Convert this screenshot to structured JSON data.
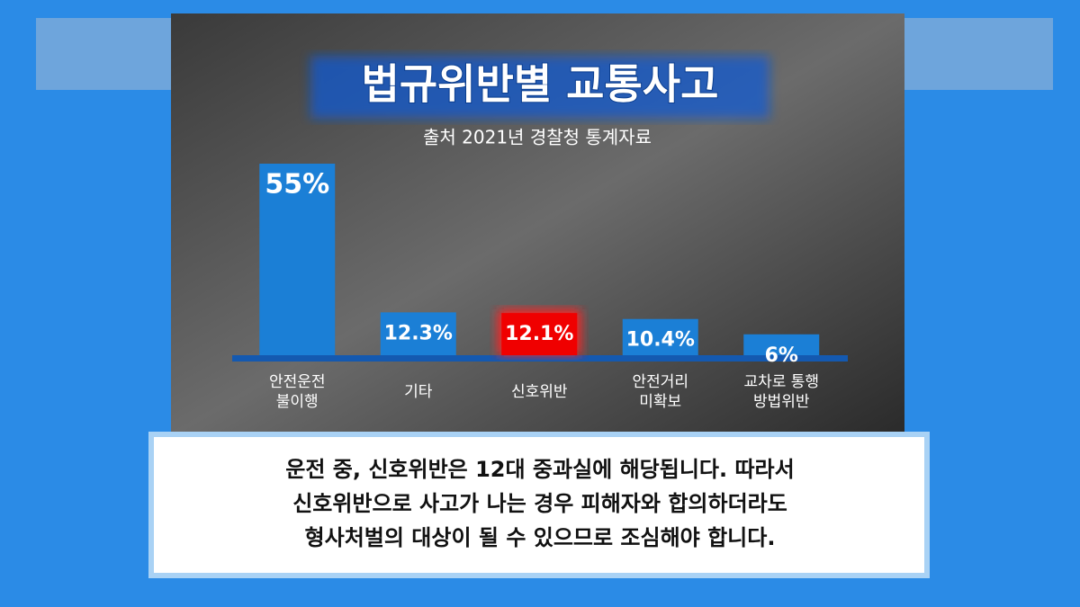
{
  "chart_data": {
    "type": "bar",
    "title": "법규위반별 교통사고",
    "subtitle": "출처 2021년 경찰청 통계자료",
    "categories": [
      [
        "안전운전",
        "불이행"
      ],
      [
        "기타"
      ],
      [
        "신호위반"
      ],
      [
        "안전거리",
        "미확보"
      ],
      [
        "교차로 통행",
        "방법위반"
      ]
    ],
    "values": [
      55,
      12.3,
      12.1,
      10.4,
      6
    ],
    "value_labels": [
      "55%",
      "12.3%",
      "12.1%",
      "10.4%",
      "6%"
    ],
    "colors": [
      "#1b7fd6",
      "#1b7fd6",
      "#f00000",
      "#1b7fd6",
      "#1b7fd6"
    ]
  },
  "caption": [
    "운전 중, 신호위반은 12대 중과실에 해당됩니다. 따라서",
    "신호위반으로 사고가 나는 경우 피해자와 합의하더라도",
    "형사처벌의 대상이 될 수 있으므로 조심해야 합니다."
  ]
}
